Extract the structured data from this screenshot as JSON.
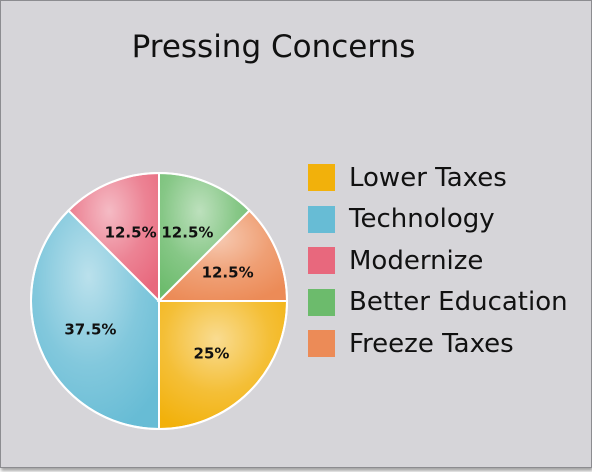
{
  "chart_data": {
    "type": "pie",
    "title": "Pressing Concerns",
    "slices": [
      {
        "name": "Lower Taxes",
        "value": 25,
        "label": "25%",
        "color": "#f2b10b"
      },
      {
        "name": "Technology",
        "value": 37.5,
        "label": "37.5%",
        "color": "#67bcd5"
      },
      {
        "name": "Modernize",
        "value": 12.5,
        "label": "12.5%",
        "color": "#e8687d"
      },
      {
        "name": "Better Education",
        "value": 12.5,
        "label": "12.5%",
        "color": "#6cbb6c"
      },
      {
        "name": "Freeze Taxes",
        "value": 12.5,
        "label": "12.5%",
        "color": "#ec8b57"
      }
    ],
    "legend_position": "right"
  }
}
